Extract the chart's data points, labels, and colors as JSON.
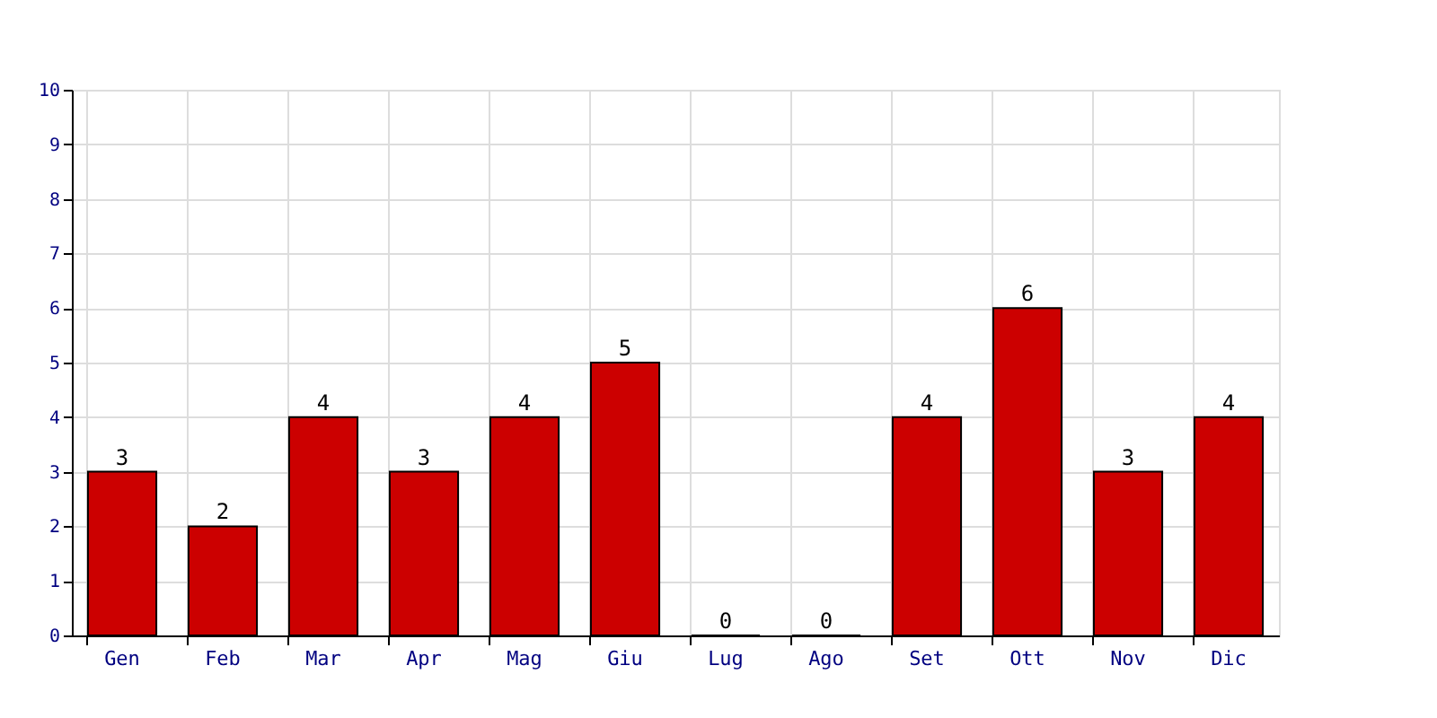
{
  "chart_data": {
    "type": "bar",
    "categories": [
      "Gen",
      "Feb",
      "Mar",
      "Apr",
      "Mag",
      "Giu",
      "Lug",
      "Ago",
      "Set",
      "Ott",
      "Nov",
      "Dic"
    ],
    "values": [
      3,
      2,
      4,
      3,
      4,
      5,
      0,
      0,
      4,
      6,
      3,
      4
    ],
    "color": "#cc0000",
    "ylim": [
      0,
      10
    ],
    "yticks": [
      0,
      1,
      2,
      3,
      4,
      5,
      6,
      7,
      8,
      9,
      10
    ],
    "grid": true,
    "data_labels": true
  }
}
